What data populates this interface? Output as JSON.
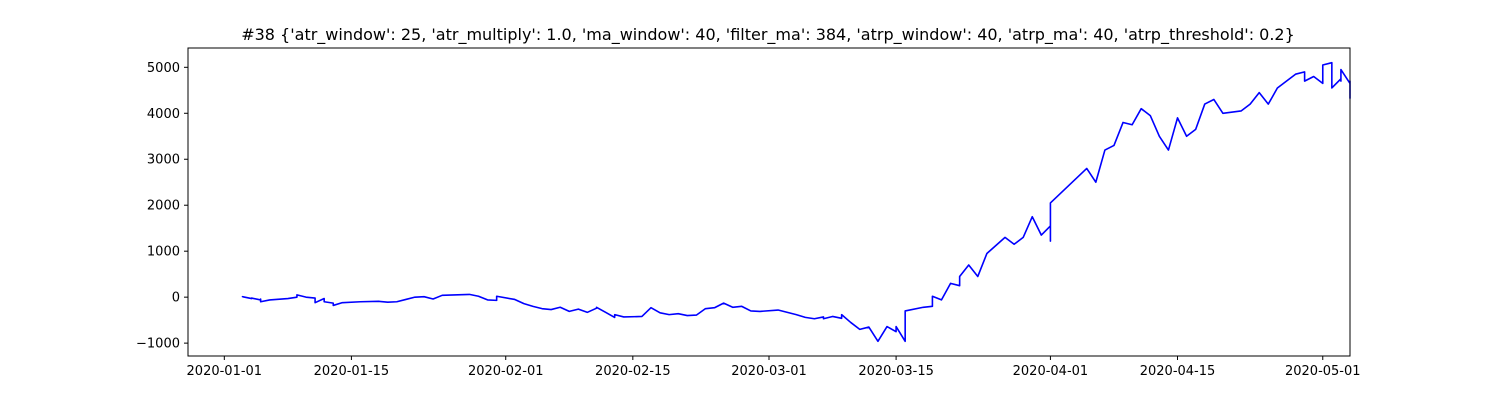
{
  "chart_data": {
    "type": "line",
    "title": "#38 {'atr_window': 25, 'atr_multiply': 1.0, 'ma_window': 40, 'filter_ma': 384, 'atrp_window': 40, 'atrp_ma': 40, 'atrp_threshold': 0.2}",
    "xlabel": "",
    "ylabel": "",
    "xlim": [
      "2019-12-28",
      "2020-05-04"
    ],
    "ylim": [
      -1280,
      5420
    ],
    "grid": false,
    "legend": "none",
    "line_color": "#0000ff",
    "x_ticks": [
      "2020-01-01",
      "2020-01-15",
      "2020-02-01",
      "2020-02-15",
      "2020-03-01",
      "2020-03-15",
      "2020-04-01",
      "2020-04-15",
      "2020-05-01"
    ],
    "y_ticks": [
      -1000,
      0,
      1000,
      2000,
      3000,
      4000,
      5000
    ],
    "y_tick_labels": [
      "−1000",
      "0",
      "1000",
      "2000",
      "3000",
      "4000",
      "5000"
    ],
    "series": [
      {
        "values": [
          [
            "2020-01-03",
            0
          ],
          [
            "2020-01-03",
            10
          ],
          [
            "2020-01-04",
            -30
          ],
          [
            "2020-01-04",
            -20
          ],
          [
            "2020-01-05",
            -60
          ],
          [
            "2020-01-05",
            -40
          ],
          [
            "2020-01-05",
            -100
          ],
          [
            "2020-01-06",
            -60
          ],
          [
            "2020-01-08",
            -30
          ],
          [
            "2020-01-09",
            0
          ],
          [
            "2020-01-09",
            50
          ],
          [
            "2020-01-10",
            0
          ],
          [
            "2020-01-11",
            -20
          ],
          [
            "2020-01-11",
            -120
          ],
          [
            "2020-01-12",
            -30
          ],
          [
            "2020-01-12",
            -100
          ],
          [
            "2020-01-13",
            -130
          ],
          [
            "2020-01-13",
            -180
          ],
          [
            "2020-01-14",
            -120
          ],
          [
            "2020-01-16",
            -100
          ],
          [
            "2020-01-18",
            -90
          ],
          [
            "2020-01-19",
            -110
          ],
          [
            "2020-01-20",
            -100
          ],
          [
            "2020-01-21",
            -50
          ],
          [
            "2020-01-22",
            0
          ],
          [
            "2020-01-23",
            10
          ],
          [
            "2020-01-24",
            -40
          ],
          [
            "2020-01-25",
            40
          ],
          [
            "2020-01-28",
            60
          ],
          [
            "2020-01-29",
            20
          ],
          [
            "2020-01-30",
            -60
          ],
          [
            "2020-01-31",
            -70
          ],
          [
            "2020-01-31",
            20
          ],
          [
            "2020-02-02",
            -50
          ],
          [
            "2020-02-03",
            -140
          ],
          [
            "2020-02-04",
            -200
          ],
          [
            "2020-02-05",
            -250
          ],
          [
            "2020-02-06",
            -270
          ],
          [
            "2020-02-07",
            -220
          ],
          [
            "2020-02-08",
            -310
          ],
          [
            "2020-02-09",
            -260
          ],
          [
            "2020-02-10",
            -330
          ],
          [
            "2020-02-11",
            -240
          ],
          [
            "2020-02-11",
            -220
          ],
          [
            "2020-02-12",
            -330
          ],
          [
            "2020-02-13",
            -440
          ],
          [
            "2020-02-13",
            -380
          ],
          [
            "2020-02-14",
            -430
          ],
          [
            "2020-02-16",
            -420
          ],
          [
            "2020-02-17",
            -230
          ],
          [
            "2020-02-18",
            -340
          ],
          [
            "2020-02-19",
            -380
          ],
          [
            "2020-02-20",
            -360
          ],
          [
            "2020-02-21",
            -400
          ],
          [
            "2020-02-22",
            -390
          ],
          [
            "2020-02-23",
            -250
          ],
          [
            "2020-02-24",
            -230
          ],
          [
            "2020-02-25",
            -130
          ],
          [
            "2020-02-26",
            -220
          ],
          [
            "2020-02-27",
            -200
          ],
          [
            "2020-02-28",
            -300
          ],
          [
            "2020-02-29",
            -310
          ],
          [
            "2020-03-02",
            -280
          ],
          [
            "2020-03-04",
            -380
          ],
          [
            "2020-03-05",
            -440
          ],
          [
            "2020-03-06",
            -470
          ],
          [
            "2020-03-07",
            -430
          ],
          [
            "2020-03-07",
            -470
          ],
          [
            "2020-03-08",
            -420
          ],
          [
            "2020-03-09",
            -460
          ],
          [
            "2020-03-09",
            -380
          ],
          [
            "2020-03-10",
            -550
          ],
          [
            "2020-03-11",
            -700
          ],
          [
            "2020-03-12",
            -650
          ],
          [
            "2020-03-13",
            -960
          ],
          [
            "2020-03-14",
            -640
          ],
          [
            "2020-03-15",
            -750
          ],
          [
            "2020-03-15",
            -640
          ],
          [
            "2020-03-16",
            -960
          ],
          [
            "2020-03-16",
            -300
          ],
          [
            "2020-03-18",
            -220
          ],
          [
            "2020-03-19",
            -200
          ],
          [
            "2020-03-19",
            20
          ],
          [
            "2020-03-20",
            -60
          ],
          [
            "2020-03-21",
            300
          ],
          [
            "2020-03-22",
            250
          ],
          [
            "2020-03-22",
            450
          ],
          [
            "2020-03-23",
            700
          ],
          [
            "2020-03-24",
            450
          ],
          [
            "2020-03-25",
            950
          ],
          [
            "2020-03-27",
            1300
          ],
          [
            "2020-03-28",
            1150
          ],
          [
            "2020-03-29",
            1300
          ],
          [
            "2020-03-30",
            1750
          ],
          [
            "2020-03-31",
            1350
          ],
          [
            "2020-04-01",
            1550
          ],
          [
            "2020-04-01",
            1220
          ],
          [
            "2020-04-01",
            2050
          ],
          [
            "2020-04-05",
            2800
          ],
          [
            "2020-04-06",
            2500
          ],
          [
            "2020-04-07",
            3200
          ],
          [
            "2020-04-08",
            3300
          ],
          [
            "2020-04-09",
            3800
          ],
          [
            "2020-04-10",
            3750
          ],
          [
            "2020-04-11",
            4100
          ],
          [
            "2020-04-12",
            3950
          ],
          [
            "2020-04-13",
            3500
          ],
          [
            "2020-04-14",
            3200
          ],
          [
            "2020-04-15",
            3900
          ],
          [
            "2020-04-16",
            3500
          ],
          [
            "2020-04-17",
            3650
          ],
          [
            "2020-04-18",
            4200
          ],
          [
            "2020-04-19",
            4300
          ],
          [
            "2020-04-20",
            4000
          ],
          [
            "2020-04-22",
            4050
          ],
          [
            "2020-04-23",
            4200
          ],
          [
            "2020-04-24",
            4450
          ],
          [
            "2020-04-25",
            4200
          ],
          [
            "2020-04-26",
            4550
          ],
          [
            "2020-04-27",
            4700
          ],
          [
            "2020-04-28",
            4850
          ],
          [
            "2020-04-29",
            4900
          ],
          [
            "2020-04-29",
            4700
          ],
          [
            "2020-04-30",
            4800
          ],
          [
            "2020-05-01",
            4650
          ],
          [
            "2020-05-01",
            5050
          ],
          [
            "2020-05-02",
            5100
          ],
          [
            "2020-05-02",
            4800
          ],
          [
            "2020-05-02",
            4600
          ],
          [
            "2020-05-02",
            4550
          ],
          [
            "2020-05-03",
            4750
          ],
          [
            "2020-05-03",
            4700
          ],
          [
            "2020-05-03",
            4850
          ],
          [
            "2020-05-03",
            4950
          ],
          [
            "2020-05-04",
            4650
          ],
          [
            "2020-05-04",
            4700
          ],
          [
            "2020-05-04",
            4500
          ],
          [
            "2020-05-04",
            4400
          ],
          [
            "2020-05-04",
            4320
          ]
        ]
      }
    ]
  }
}
